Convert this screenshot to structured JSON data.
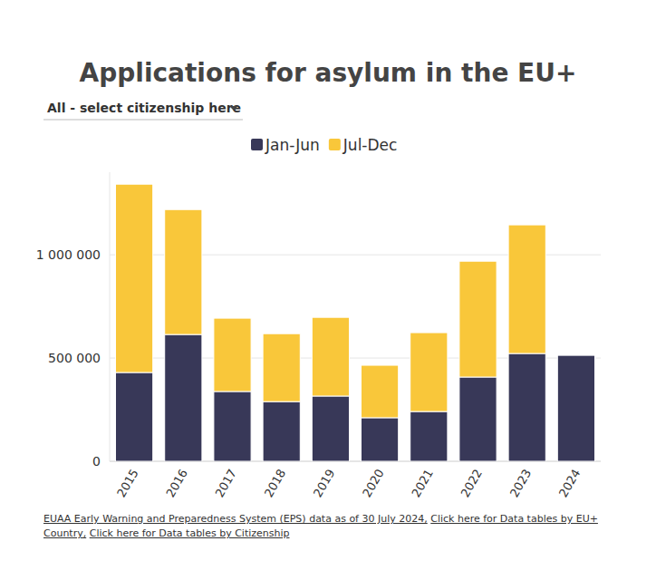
{
  "chart_data": {
    "type": "bar",
    "stacked": true,
    "title": "Applications for asylum in the EU+",
    "subtitle": "All - select citizenship here",
    "source": [
      "EUAA Early Warning and Preparedness System (EPS) data as of 30 July 2024,",
      "Click here for Data tables by EU+ Country,",
      "Click here for Data tables by Citizenship"
    ],
    "categories": [
      "2015",
      "2016",
      "2017",
      "2018",
      "2019",
      "2020",
      "2021",
      "2022",
      "2023",
      "2024"
    ],
    "series": [
      {
        "name": "Jan-Jun",
        "color": "#383858",
        "values": [
          430000,
          614000,
          338000,
          289000,
          316000,
          211000,
          241000,
          408000,
          522000,
          513000
        ]
      },
      {
        "name": "Jul-Dec",
        "color": "#f9c73a",
        "values": [
          912000,
          605000,
          355000,
          329000,
          381000,
          254000,
          382000,
          561000,
          623000,
          null
        ]
      }
    ],
    "ylim": [
      0,
      1400000
    ],
    "yticks": [
      0,
      {
        "value": 500000,
        "label": "500 000"
      },
      {
        "value": 1000000,
        "label": "1 000 000"
      }
    ],
    "grid": true,
    "legend": "top"
  }
}
